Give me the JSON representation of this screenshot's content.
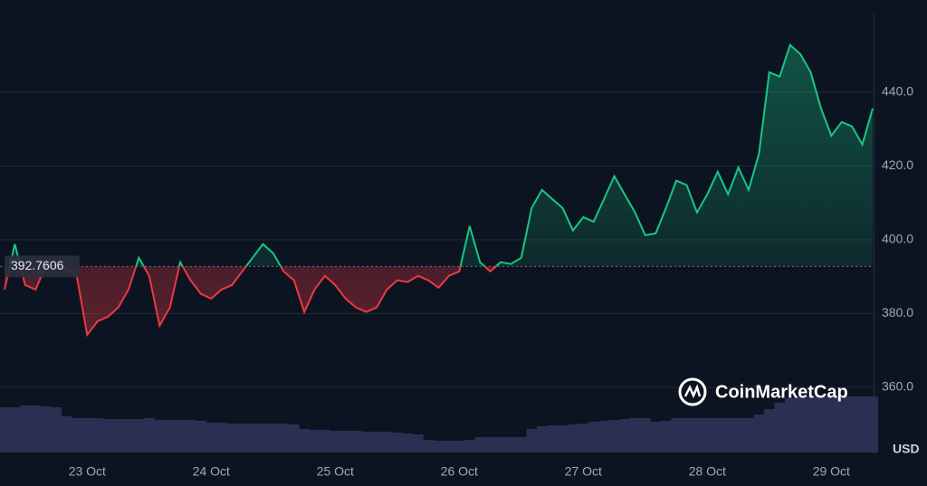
{
  "chart_data": {
    "type": "baseline-line",
    "baseline": {
      "value": 392.7606,
      "label": "392.7606"
    },
    "up_color": "#16c784",
    "down_color": "#ea3943",
    "volume_color": "#2a3052",
    "ylim": [
      342.3,
      461.3
    ],
    "yticks": [
      {
        "value": 360,
        "label": "360.0"
      },
      {
        "value": 380,
        "label": "380.0"
      },
      {
        "value": 400,
        "label": "400.0"
      },
      {
        "value": 420,
        "label": "420.0"
      },
      {
        "value": 440,
        "label": "440.0"
      }
    ],
    "grid": true,
    "currency": "USD",
    "watermark": "CoinMarketCap",
    "categories": [
      null,
      null,
      null,
      null,
      null,
      null,
      null,
      null,
      "23 Oct",
      null,
      null,
      null,
      null,
      null,
      null,
      null,
      null,
      null,
      null,
      null,
      "24 Oct",
      null,
      null,
      null,
      null,
      null,
      null,
      null,
      null,
      null,
      null,
      null,
      "25 Oct",
      null,
      null,
      null,
      null,
      null,
      null,
      null,
      null,
      null,
      null,
      null,
      "26 Oct",
      null,
      null,
      null,
      null,
      null,
      null,
      null,
      null,
      null,
      null,
      null,
      "27 Oct",
      null,
      null,
      null,
      null,
      null,
      null,
      null,
      null,
      null,
      null,
      null,
      "28 Oct",
      null,
      null,
      null,
      null,
      null,
      null,
      null,
      null,
      null,
      null,
      null,
      "29 Oct",
      null,
      null,
      null,
      null
    ],
    "series": [
      {
        "values": [
          386.5,
          398.8,
          387.7,
          386.5,
          393,
          393,
          392,
          390,
          374.2,
          377.9,
          379.1,
          381.6,
          386.5,
          395.1,
          390.2,
          376.7,
          381.6,
          393.9,
          389,
          385.3,
          384,
          386.5,
          387.7,
          391.4,
          395.1,
          398.8,
          396.3,
          391.4,
          389,
          380.4,
          386.5,
          390.2,
          387.7,
          384,
          381.6,
          380.4,
          381.6,
          386.5,
          389,
          388.5,
          390.2,
          389,
          387,
          390.2,
          391.4,
          403.7,
          393.9,
          391.4,
          393.9,
          393.4,
          395.1,
          408.6,
          413.5,
          411,
          408.6,
          402.5,
          406.1,
          404.9,
          411,
          417.2,
          412.3,
          407.4,
          401.2,
          401.7,
          408.6,
          416,
          414.8,
          407.4,
          412.3,
          418.4,
          412.3,
          419.6,
          413.5,
          423.3,
          445.4,
          444.2,
          452.8,
          450.3,
          445.4,
          435.6,
          428.2,
          431.9,
          430.7,
          425.8,
          435.6
        ]
      }
    ],
    "volume_lim": [
      0,
      100
    ],
    "volume": [
      50,
      50,
      52,
      52,
      51,
      50,
      40,
      38,
      38,
      38,
      37,
      37,
      37,
      37,
      38,
      36,
      36,
      36,
      36,
      35,
      33,
      33,
      32,
      32,
      32,
      32,
      32,
      32,
      31,
      26,
      25,
      25,
      24,
      24,
      24,
      23,
      23,
      23,
      22,
      21,
      20,
      14,
      13,
      13,
      13,
      14,
      17,
      17,
      17,
      17,
      17,
      26,
      29,
      30,
      30,
      31,
      32,
      34,
      35,
      36,
      37,
      38,
      38,
      34,
      35,
      38,
      38,
      38,
      38,
      38,
      38,
      38,
      38,
      42,
      48,
      55,
      60,
      62,
      62,
      62,
      62,
      62,
      62,
      62,
      62
    ]
  }
}
